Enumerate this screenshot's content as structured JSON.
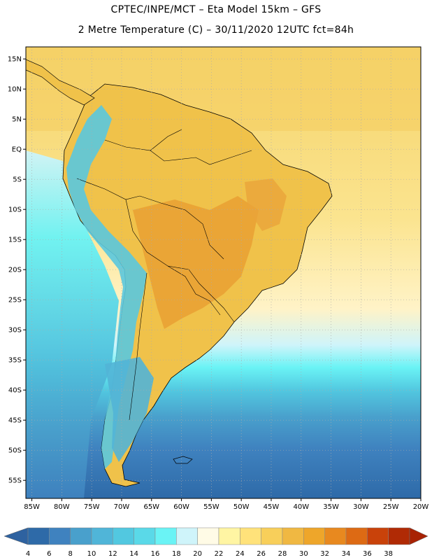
{
  "header": {
    "line1": "CPTEC/INPE/MCT –  Eta Model 15km – GFS",
    "line2": "2 Metre Temperature (C) – 30/11/2020 12UTC fct=84h"
  },
  "axes": {
    "lat_labels": [
      "15N",
      "10N",
      "5N",
      "EQ",
      "5S",
      "10S",
      "15S",
      "20S",
      "25S",
      "30S",
      "35S",
      "40S",
      "45S",
      "50S",
      "55S"
    ],
    "lat_values": [
      15,
      10,
      5,
      0,
      -5,
      -10,
      -15,
      -20,
      -25,
      -30,
      -35,
      -40,
      -45,
      -50,
      -55
    ],
    "lon_labels": [
      "85W",
      "80W",
      "75W",
      "70W",
      "65W",
      "60W",
      "55W",
      "50W",
      "45W",
      "40W",
      "35W",
      "30W",
      "25W",
      "20W"
    ],
    "lon_values": [
      -85,
      -80,
      -75,
      -70,
      -65,
      -60,
      -55,
      -50,
      -45,
      -40,
      -35,
      -30,
      -25,
      -20
    ],
    "lat_range": [
      -58,
      17
    ],
    "lon_range": [
      -86,
      -20
    ]
  },
  "colorbar": {
    "labels": [
      "4",
      "6",
      "8",
      "10",
      "12",
      "14",
      "16",
      "18",
      "20",
      "22",
      "24",
      "26",
      "28",
      "30",
      "32",
      "34",
      "36",
      "38"
    ],
    "colors": [
      "#2e6aa8",
      "#3f82bf",
      "#49a0cc",
      "#50b5d8",
      "#52c8e0",
      "#5ad9e8",
      "#6af3f5",
      "#cff4fa",
      "#fffbe6",
      "#fff5a3",
      "#ffe27a",
      "#f8cf5a",
      "#f0b842",
      "#eea62a",
      "#e8891f",
      "#dd6a14",
      "#c9420a",
      "#b02a05"
    ],
    "under_color": "#2e62a0",
    "over_color": "#a82204"
  },
  "map": {
    "land_color": "#f0c24a",
    "ocean_north_color": "#f5d36a",
    "hot_core_color": "#e9a033",
    "andes_color": "#5ac8de"
  }
}
